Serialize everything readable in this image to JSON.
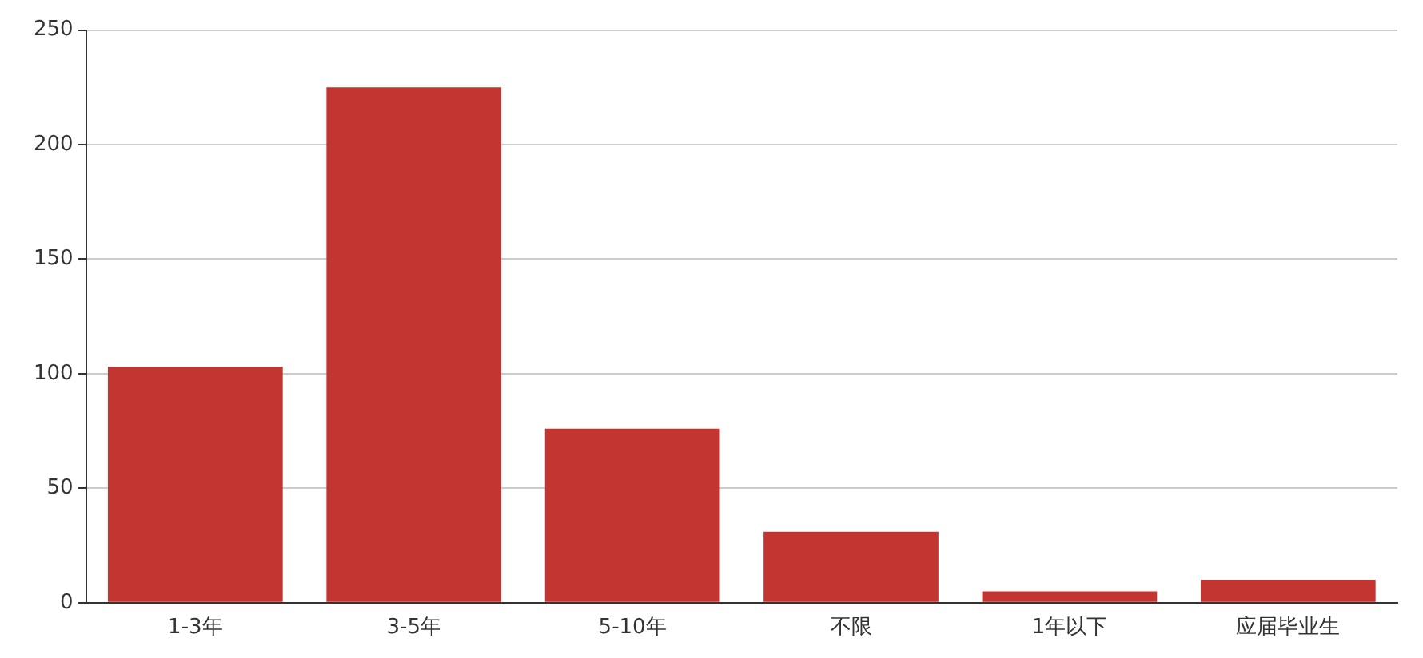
{
  "chart_data": {
    "type": "bar",
    "categories": [
      "1-3年",
      "3-5年",
      "5-10年",
      "不限",
      "1年以下",
      "应届毕业生"
    ],
    "values": [
      103,
      225,
      76,
      31,
      5,
      10
    ],
    "color": "#c23531",
    "ylim": [
      0,
      250
    ],
    "yticks": [
      0,
      50,
      100,
      150,
      200,
      250
    ],
    "grid": "y"
  }
}
